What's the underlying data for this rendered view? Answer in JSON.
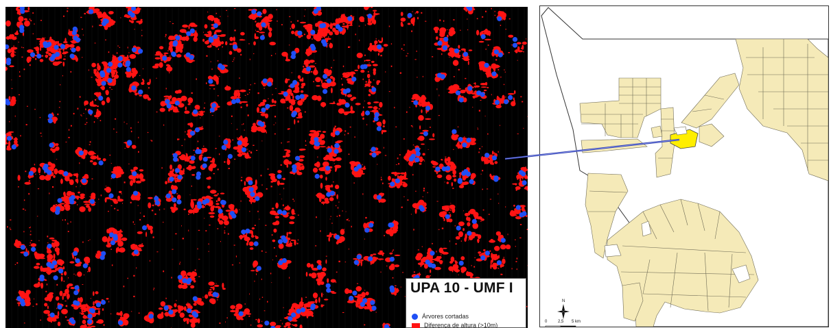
{
  "legend": {
    "title": "UPA 10 - UMF I",
    "items": [
      {
        "label": "Árvores cortadas",
        "color": "#1f4ff5",
        "symbol": "dot"
      },
      {
        "label": "Diferença de altura (>10m)",
        "color": "#ff1414",
        "symbol": "rect"
      }
    ]
  },
  "locator": {
    "north_label": "N",
    "scale_labels": [
      "0",
      "2,5",
      "5 km"
    ],
    "fill_color": "#f5eab8",
    "highlight_color": "#ffee00",
    "connector_color": "#2a3aa8"
  },
  "colors": {
    "background": "#000000",
    "gap": "#ff1414",
    "tree": "#1f4ff5"
  }
}
